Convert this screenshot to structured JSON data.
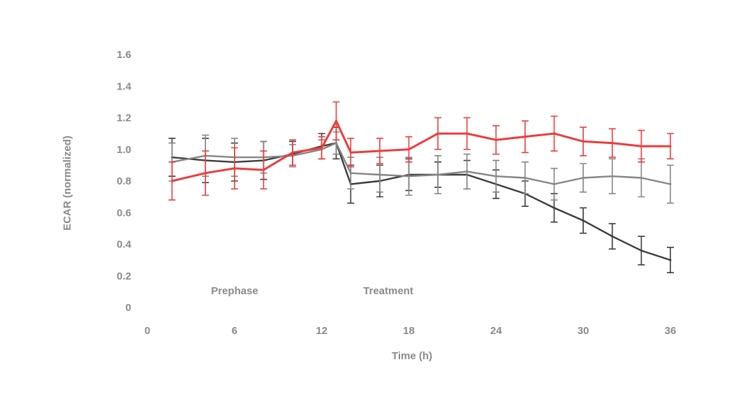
{
  "chart_data": {
    "type": "line",
    "title": "",
    "xlabel": "Time (h)",
    "ylabel": "ECAR (normalized)",
    "xlim": [
      0,
      36
    ],
    "ylim": [
      0,
      1.6
    ],
    "x_ticks": [
      "0",
      "6",
      "12",
      "18",
      "24",
      "30",
      "36"
    ],
    "y_ticks": [
      "0",
      "0.2",
      "0.4",
      "0.6",
      "0.8",
      "1.0",
      "1.2",
      "1.4",
      "1.6"
    ],
    "grid": false,
    "legend": "none",
    "annotations": [
      {
        "text": "Prephase",
        "x": 6,
        "y": 0.1
      },
      {
        "text": "Treatment",
        "x": 16.5,
        "y": 0.1
      }
    ],
    "x": [
      1.7,
      4.0,
      6.0,
      8.0,
      10.0,
      12.0,
      13.0,
      14.0,
      16.0,
      18.0,
      20.0,
      22.0,
      24.0,
      26.0,
      28.0,
      30.0,
      32.0,
      34.0,
      36.0
    ],
    "series": [
      {
        "color": "#ee3b3b",
        "values": [
          0.8,
          0.85,
          0.88,
          0.87,
          0.98,
          1.01,
          1.18,
          0.98,
          0.99,
          1.0,
          1.1,
          1.1,
          1.06,
          1.08,
          1.1,
          1.05,
          1.04,
          1.02,
          1.02
        ],
        "errors": [
          0.12,
          0.14,
          0.13,
          0.12,
          0.08,
          0.07,
          0.12,
          0.09,
          0.08,
          0.08,
          0.1,
          0.1,
          0.09,
          0.1,
          0.11,
          0.09,
          0.09,
          0.1,
          0.08
        ]
      },
      {
        "color": "#858585",
        "values": [
          0.92,
          0.96,
          0.95,
          0.95,
          0.96,
          1.0,
          1.04,
          0.85,
          0.84,
          0.83,
          0.84,
          0.86,
          0.83,
          0.82,
          0.78,
          0.82,
          0.83,
          0.82,
          0.78
        ],
        "errors": [
          0.12,
          0.13,
          0.12,
          0.1,
          0.07,
          0.06,
          0.07,
          0.1,
          0.11,
          0.12,
          0.12,
          0.11,
          0.1,
          0.1,
          0.1,
          0.09,
          0.11,
          0.12,
          0.12
        ]
      },
      {
        "color": "#3c3c3c",
        "values": [
          0.95,
          0.93,
          0.92,
          0.93,
          0.97,
          1.02,
          1.04,
          0.78,
          0.8,
          0.84,
          0.84,
          0.84,
          0.78,
          0.72,
          0.63,
          0.55,
          0.45,
          0.36,
          0.3
        ],
        "errors": [
          0.12,
          0.14,
          0.12,
          0.12,
          0.08,
          0.08,
          0.1,
          0.12,
          0.1,
          0.1,
          0.08,
          0.09,
          0.09,
          0.08,
          0.09,
          0.08,
          0.08,
          0.09,
          0.08
        ]
      }
    ]
  }
}
